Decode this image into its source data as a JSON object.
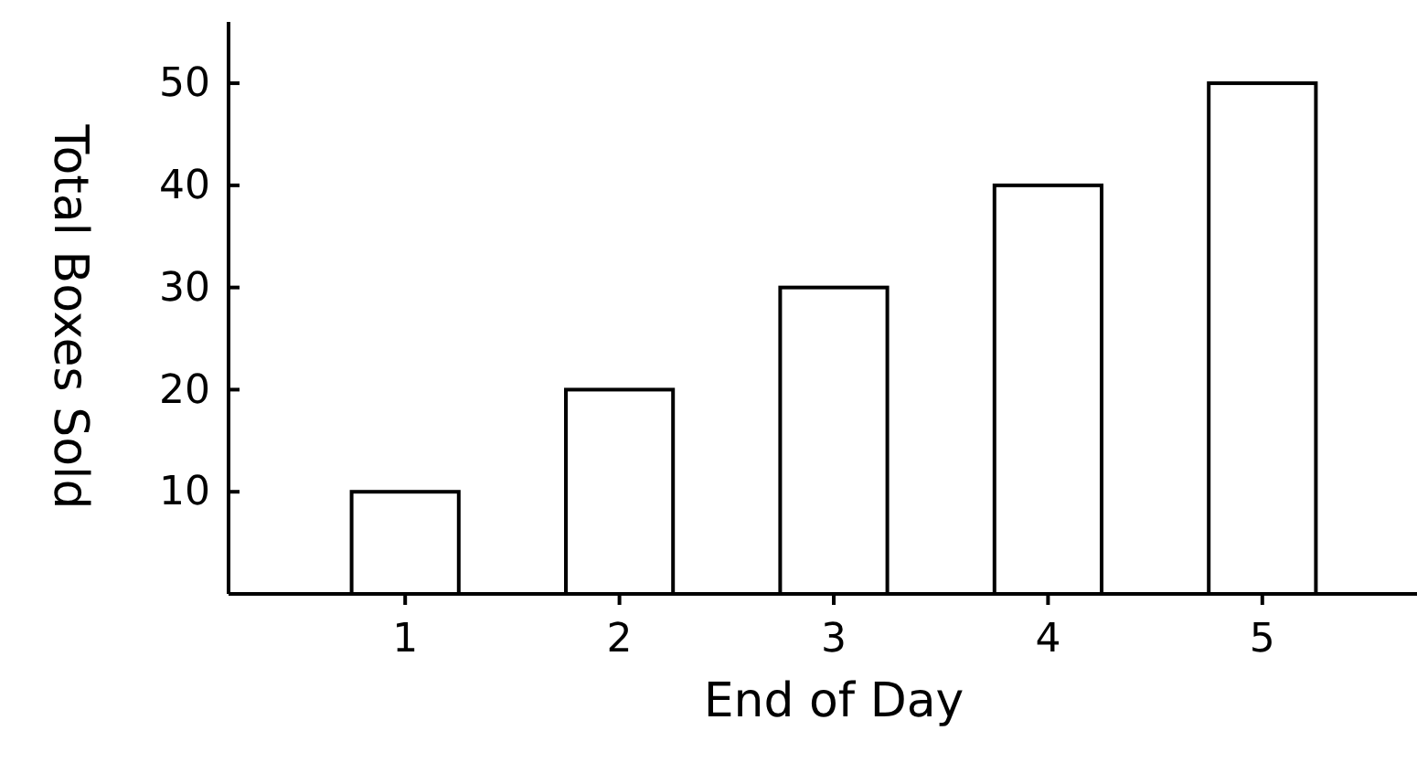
{
  "chart_data": {
    "type": "bar",
    "xlabel": "End of Day",
    "ylabel": "Total Boxes Sold",
    "categories": [
      "1",
      "2",
      "3",
      "4",
      "5"
    ],
    "values": [
      10,
      20,
      30,
      40,
      50
    ],
    "color": "#ffffff",
    "ylim": [
      0,
      56
    ],
    "yticks": [
      10,
      20,
      30,
      40,
      50
    ],
    "grid": false
  }
}
